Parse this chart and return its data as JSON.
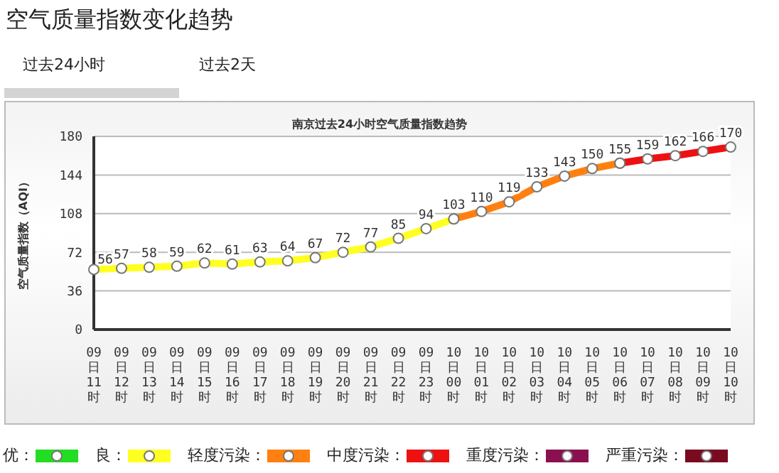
{
  "chart_data": {
    "type": "line",
    "title": "空气质量指数变化趋势",
    "subtitle": "南京过去24小时空气质量指数趋势",
    "ylabel": "空气质量指数（AQI）",
    "annotations": [
      "过去24小时",
      "过去2天"
    ],
    "categories": [
      "09日11时",
      "09日12时",
      "09日13时",
      "09日14时",
      "09日15时",
      "09日16时",
      "09日17时",
      "09日18时",
      "09日19时",
      "09日20时",
      "09日21时",
      "09日22时",
      "09日23时",
      "10日00时",
      "10日01时",
      "10日02时",
      "10日03时",
      "10日04时",
      "10日05时",
      "10日06时",
      "10日07时",
      "10日08时",
      "10日09时",
      "10日10时"
    ],
    "series": [
      {
        "name": "优：",
        "color": "#22dd22",
        "values": [
          null,
          null,
          null,
          null,
          null,
          null,
          null,
          null,
          null,
          null,
          null,
          null,
          null,
          null,
          null,
          null,
          null,
          null,
          null,
          null,
          null,
          null,
          null,
          null
        ]
      },
      {
        "name": "良：",
        "color": "#ffff22",
        "values": [
          56,
          57,
          58,
          59,
          62,
          61,
          63,
          64,
          67,
          72,
          77,
          85,
          94,
          103,
          null,
          null,
          null,
          null,
          null,
          null,
          null,
          null,
          null,
          null
        ],
        "value_labels": [
          "56",
          "57",
          "58",
          "59",
          "62",
          "61",
          "63",
          "64",
          "67",
          "72",
          "77",
          "85",
          "94",
          "103",
          null,
          null,
          null,
          null,
          null,
          null,
          null,
          null,
          null,
          null
        ]
      },
      {
        "name": "轻度污染：",
        "color": "#ff8010",
        "values": [
          null,
          null,
          null,
          null,
          null,
          null,
          null,
          null,
          null,
          null,
          null,
          null,
          null,
          103,
          110,
          119,
          133,
          143,
          150,
          155,
          null,
          null,
          null,
          null
        ],
        "value_labels": [
          null,
          null,
          null,
          null,
          null,
          null,
          null,
          null,
          null,
          null,
          null,
          null,
          null,
          null,
          "110",
          "119",
          "133",
          "143",
          "150",
          "155",
          null,
          null,
          null,
          null
        ]
      },
      {
        "name": "中度污染：",
        "color": "#ee1111",
        "values": [
          null,
          null,
          null,
          null,
          null,
          null,
          null,
          null,
          null,
          null,
          null,
          null,
          null,
          null,
          null,
          null,
          null,
          null,
          null,
          155,
          159,
          162,
          166,
          170
        ],
        "value_labels": [
          null,
          null,
          null,
          null,
          null,
          null,
          null,
          null,
          null,
          null,
          null,
          null,
          null,
          null,
          null,
          null,
          null,
          null,
          null,
          null,
          "159",
          "162",
          "166",
          "170"
        ]
      },
      {
        "name": "重度污染：",
        "color": "#8b1050",
        "values": [
          null,
          null,
          null,
          null,
          null,
          null,
          null,
          null,
          null,
          null,
          null,
          null,
          null,
          null,
          null,
          null,
          null,
          null,
          null,
          null,
          null,
          null,
          null,
          null
        ]
      },
      {
        "name": "严重污染：",
        "color": "#7a0a20",
        "values": [
          null,
          null,
          null,
          null,
          null,
          null,
          null,
          null,
          null,
          null,
          null,
          null,
          null,
          null,
          null,
          null,
          null,
          null,
          null,
          null,
          null,
          null,
          null,
          null
        ]
      }
    ],
    "ylim": [
      0,
      180
    ],
    "yticks": [
      0,
      36,
      72,
      108,
      144,
      180
    ],
    "grid": "y",
    "legend": "bottom",
    "marker": "circle",
    "line_style": "solid"
  }
}
